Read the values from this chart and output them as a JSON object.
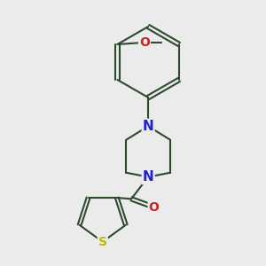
{
  "bg_color": "#ebebeb",
  "bond_color": "#2d4a2d",
  "bond_width": 1.5,
  "atom_colors": {
    "N": "#2222cc",
    "O": "#cc2222",
    "S": "#bbbb00"
  },
  "font_size_atoms": 9,
  "fig_size": [
    3.0,
    3.0
  ],
  "dpi": 100
}
